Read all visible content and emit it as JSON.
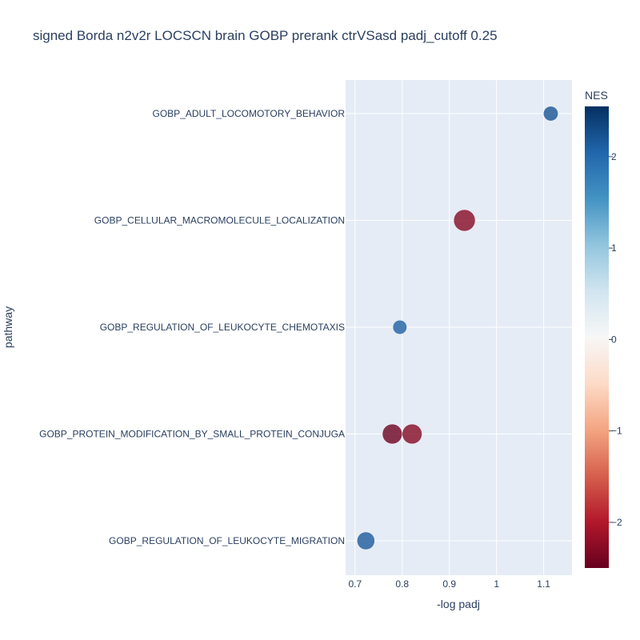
{
  "chart_data": {
    "type": "scatter",
    "title": "signed Borda n2v2r LOCSCN brain GOBP prerank ctrVSasd padj_cutoff 0.25",
    "xlabel": "-log padj",
    "ylabel": "pathway",
    "xlim": [
      0.68,
      1.16
    ],
    "xticks": [
      0.7,
      0.8,
      0.9,
      1,
      1.1
    ],
    "xtick_labels": [
      "0.7",
      "0.8",
      "0.9",
      "1",
      "1.1"
    ],
    "categories": [
      "GOBP_ADULT_LOCOMOTORY_BEHAVIOR",
      "GOBP_CELLULAR_MACROMOLECULE_LOCALIZATION",
      "GOBP_REGULATION_OF_LEUKOCYTE_CHEMOTAXIS",
      "GOBP_PROTEIN_MODIFICATION_BY_SMALL_PROTEIN_CONJUGA",
      "GOBP_REGULATION_OF_LEUKOCYTE_MIGRATION"
    ],
    "points": [
      {
        "pathway": "GOBP_ADULT_LOCOMOTORY_BEHAVIOR",
        "x": 1.115,
        "nes": 2.2,
        "relative_size": 0.68
      },
      {
        "pathway": "GOBP_CELLULAR_MACROMOLECULE_LOCALIZATION",
        "x": 0.932,
        "nes": -2.3,
        "relative_size": 1.0
      },
      {
        "pathway": "GOBP_REGULATION_OF_LEUKOCYTE_CHEMOTAXIS",
        "x": 0.795,
        "nes": 2.1,
        "relative_size": 0.65
      },
      {
        "pathway": "GOBP_PROTEIN_MODIFICATION_BY_SMALL_PROTEIN_CONJUGA",
        "x": 0.779,
        "nes": -2.45,
        "relative_size": 0.92
      },
      {
        "pathway": "GOBP_PROTEIN_MODIFICATION_BY_SMALL_PROTEIN_CONJUGA",
        "x": 0.821,
        "nes": -2.3,
        "relative_size": 0.92
      },
      {
        "pathway": "GOBP_REGULATION_OF_LEUKOCYTE_MIGRATION",
        "x": 0.723,
        "nes": 2.15,
        "relative_size": 0.82
      }
    ],
    "colorbar": {
      "title": "NES",
      "range": [
        -2.5,
        2.55
      ],
      "ticks": [
        2,
        1,
        0,
        -1,
        -2
      ],
      "tick_labels": [
        "2",
        "1",
        "0",
        "−1",
        "−2"
      ],
      "colorscale": [
        [
          0.0,
          "#67001f"
        ],
        [
          0.1,
          "#b2182b"
        ],
        [
          0.2,
          "#d6604d"
        ],
        [
          0.3,
          "#f4a582"
        ],
        [
          0.4,
          "#fddbc7"
        ],
        [
          0.5,
          "#f7f7f7"
        ],
        [
          0.6,
          "#d1e5f0"
        ],
        [
          0.7,
          "#92c5de"
        ],
        [
          0.8,
          "#4393c3"
        ],
        [
          0.9,
          "#2166ac"
        ],
        [
          1.0,
          "#053061"
        ]
      ]
    },
    "grid": true,
    "legend": "none"
  }
}
